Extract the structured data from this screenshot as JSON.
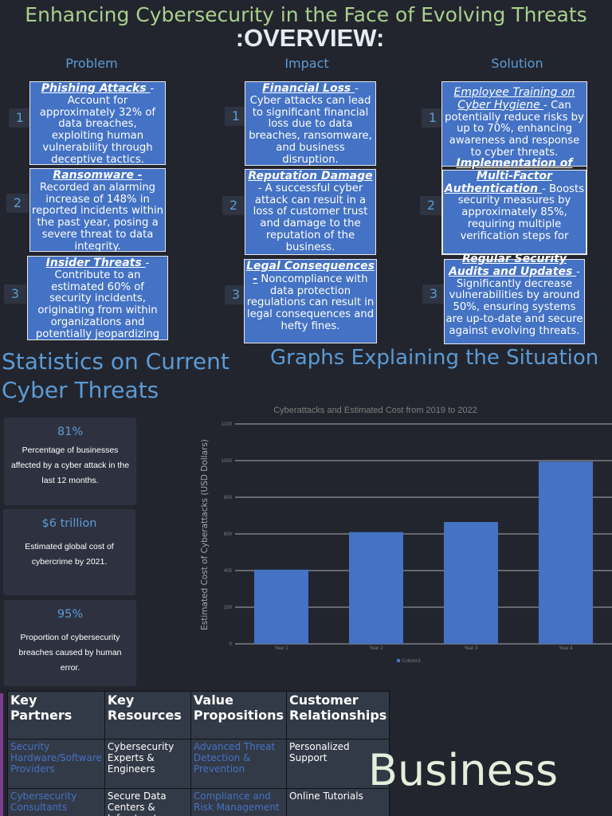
{
  "title": "Enhancing Cybersecurity in the Face of Evolving Threats",
  "overview": ":OVERVIEW:",
  "columns": {
    "problem": "Problem",
    "impact": "Impact",
    "solution": "Solution"
  },
  "numbers": [
    "1",
    "2",
    "3"
  ],
  "problems": [
    {
      "title": "Phishing Attacks ",
      "sep": "-",
      "text": " Account for approximately 32% of data breaches, exploiting human vulnerability through deceptive tactics."
    },
    {
      "title": "Ransomware -",
      "sep": "",
      "text": " Recorded an alarming increase of 148% in reported incidents within the past year, posing a severe threat to data integrity."
    },
    {
      "title": "Insider Threats ",
      "sep": "-",
      "text": " Contribute to an estimated 60% of security incidents, originating from within organizations and potentially jeopardizing sensitive information."
    }
  ],
  "impacts": [
    {
      "title": "Financial Loss ",
      "sep": "-",
      "text": " Cyber attacks can lead to significant financial loss due to data breaches, ransomware, and business disruption."
    },
    {
      "title": "Reputation Damage",
      "sep": "",
      "text": " - A successful cyber attack can result in a loss of customer trust and damage to the reputation of the business."
    },
    {
      "title": "Legal Consequences -",
      "sep": "",
      "text": " Noncompliance with data protection regulations can result in legal consequences and hefty fines."
    }
  ],
  "solutions": [
    {
      "title": "Employee Training on Cyber Hygiene ",
      "sep": "-",
      "text": " Can potentially reduce risks by up to 70%, enhancing awareness and response to cyber threats."
    },
    {
      "title": "Implementation of Multi-Factor Authentication ",
      "sep": "-",
      "text": " Boosts security measures by approximately 85%, requiring multiple verification steps for"
    },
    {
      "title": "Regular Security Audits and Updates ",
      "sep": "-",
      "text": " Significantly decrease vulnerabilities by around 50%, ensuring systems are up-to-date and secure against evolving threats."
    }
  ],
  "stats_heading": "Statistics on Current Cyber Threats",
  "graphs_heading": "Graphs Explaining the Situation",
  "stats": [
    {
      "value": "81%",
      "label": "Percentage of businesses affected by a cyber attack in the last 12 months."
    },
    {
      "value": "$6 trillion",
      "label": "Estimated global cost of cybercrime by 2021."
    },
    {
      "value": "95%",
      "label": "Proportion of cybersecurity breaches caused by human error."
    }
  ],
  "chart_data": {
    "type": "bar",
    "title": "Cyberattacks and Estimated Cost  from 2019 to 2022",
    "ylabel": "Estimated Cost of Cyberattacks (USD Dollars)",
    "xlabel": "",
    "categories": [
      "Year 1",
      "Year 2",
      "Year 3",
      "Year 4"
    ],
    "series": [
      {
        "name": "Column1",
        "values": [
          405,
          610,
          665,
          995
        ]
      }
    ],
    "ylim": [
      0,
      1200
    ],
    "yticks": [
      0,
      200,
      400,
      600,
      800,
      1000,
      1200
    ],
    "grid": true,
    "legend": "bottom",
    "bar_color": "#4472c4"
  },
  "bmc": {
    "headers": [
      "Key Partners",
      "Key Resources",
      "Value Propositions",
      "Customer Relationships"
    ],
    "rows": [
      [
        "Security Hardware/Software Providers",
        "Cybersecurity Experts & Engineers",
        "Advanced Threat Detection & Prevention",
        "Personalized Support"
      ],
      [
        "Cybersecurity Consultants",
        "Secure Data Centers & Infrastructure",
        "Compliance and Risk Management",
        "Online Tutorials"
      ]
    ]
  },
  "business_label": "Business"
}
